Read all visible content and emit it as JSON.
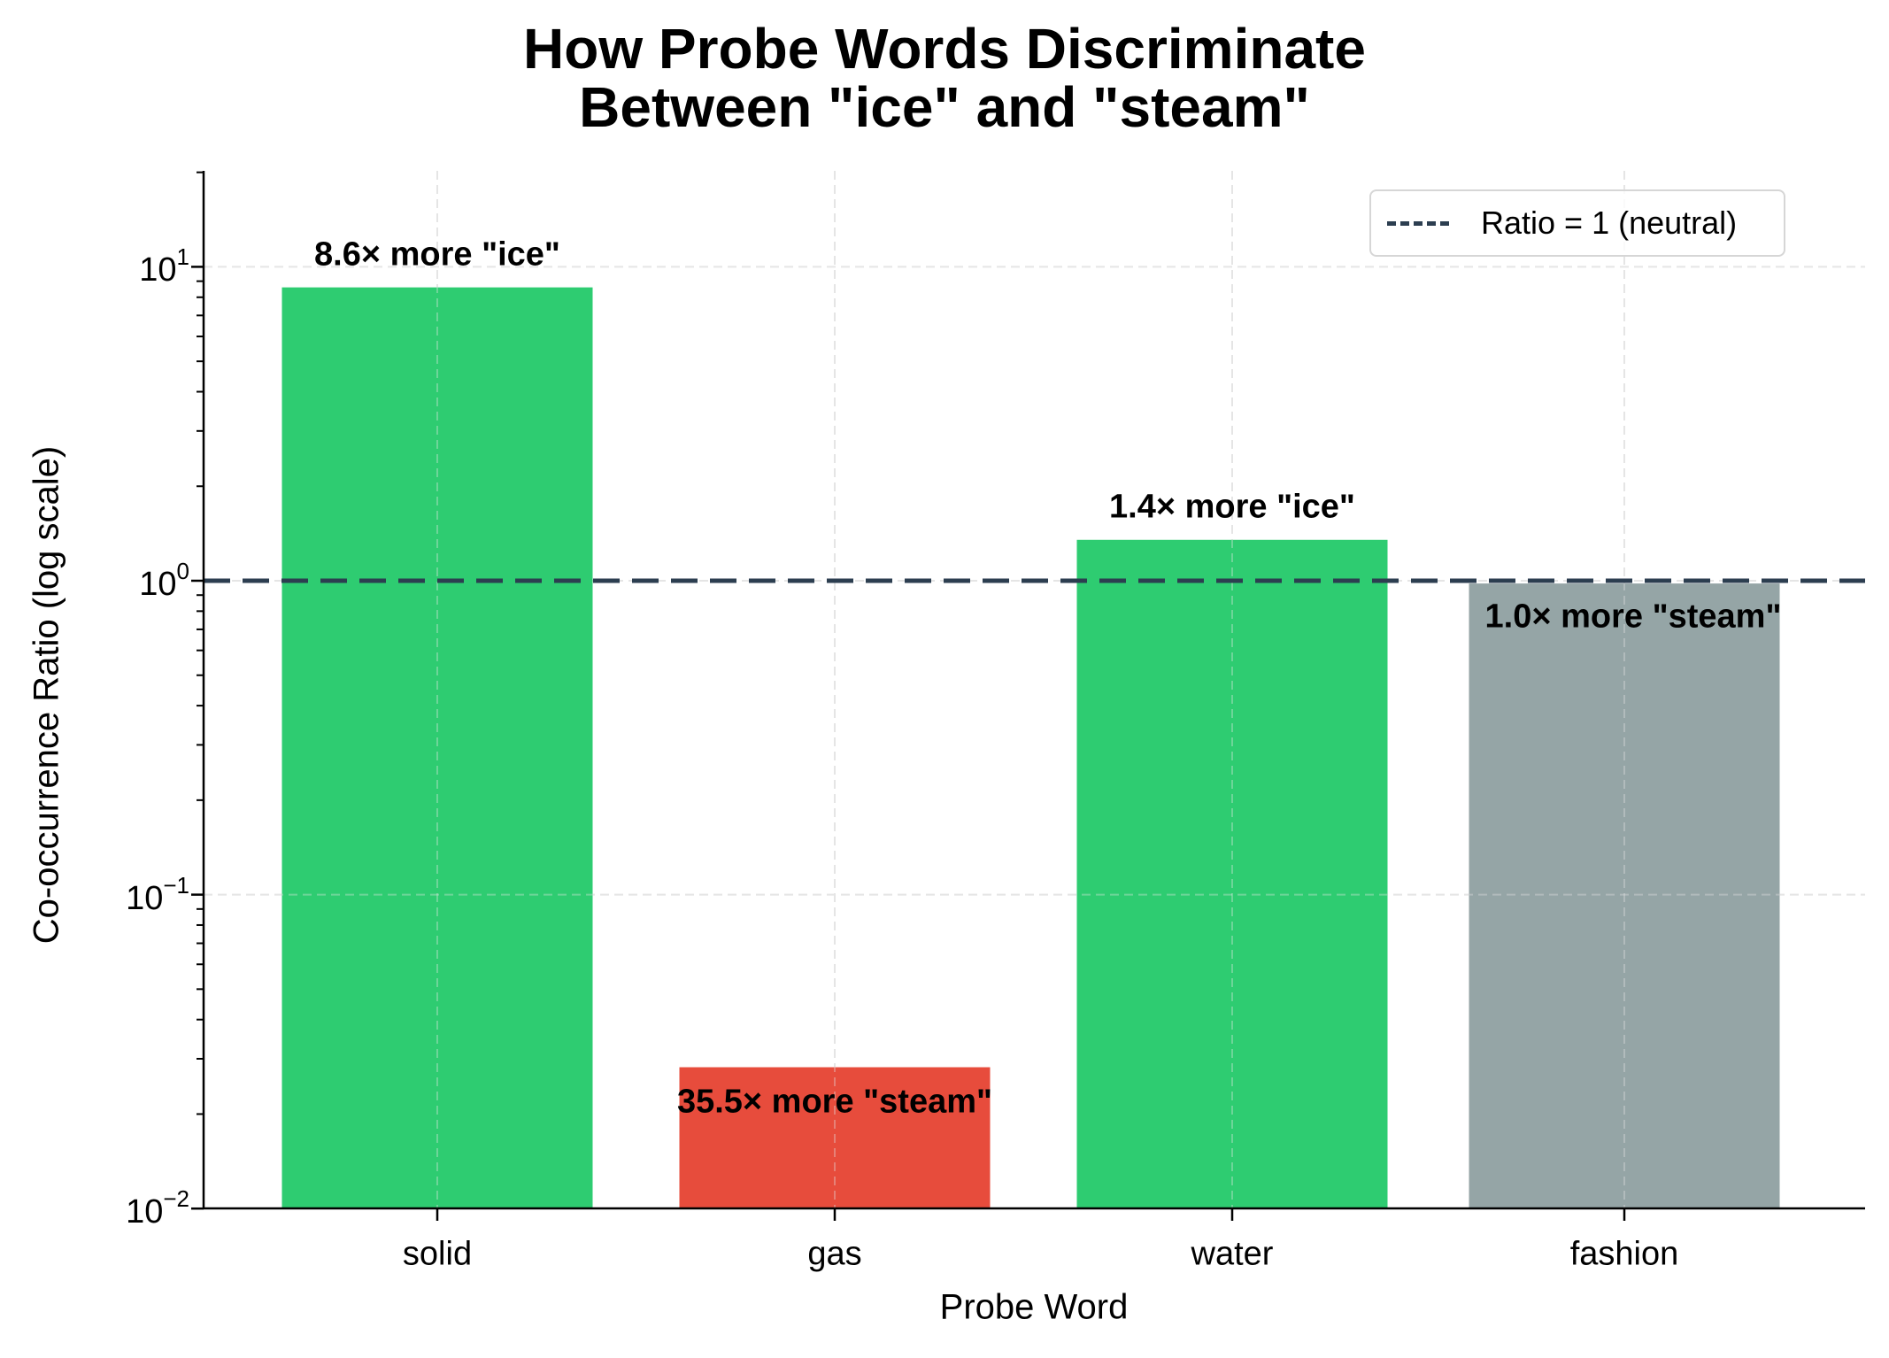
{
  "title": {
    "line1": "How Probe Words Discriminate",
    "line2": "Between \"ice\" and \"steam\""
  },
  "axes": {
    "xlabel": "Probe Word",
    "ylabel": "Co-occurrence Ratio (log scale)",
    "yticks": [
      {
        "base": "10",
        "exp": "1"
      },
      {
        "base": "10",
        "exp": "0"
      },
      {
        "base": "10",
        "exp": "−1"
      },
      {
        "base": "10",
        "exp": "−2"
      }
    ],
    "xticks": [
      "solid",
      "gas",
      "water",
      "fashion"
    ]
  },
  "legend": {
    "label": "Ratio = 1 (neutral)"
  },
  "bar_labels": [
    "8.6× more \"ice\"",
    "35.5× more \"steam\"",
    "1.4× more \"ice\"",
    "1.0× more \"steam\""
  ],
  "colors": {
    "ice": "#2ecc71",
    "steam": "#e74c3c",
    "neutral": "#95a5a6",
    "reference_line": "#2c3e50",
    "grid": "#e5e5e5"
  },
  "chart_data": {
    "type": "bar",
    "title": "How Probe Words Discriminate Between \"ice\" and \"steam\"",
    "xlabel": "Probe Word",
    "ylabel": "Co-occurrence Ratio (log scale)",
    "yscale": "log",
    "categories": [
      "solid",
      "gas",
      "water",
      "fashion"
    ],
    "values": [
      8.6,
      0.0282,
      1.35,
      0.98
    ],
    "bar_colors": [
      "#2ecc71",
      "#e74c3c",
      "#2ecc71",
      "#95a5a6"
    ],
    "annotations": [
      "8.6× more \"ice\"",
      "35.5× more \"steam\"",
      "1.4× more \"ice\"",
      "1.0× more \"steam\""
    ],
    "reference_line": {
      "y": 1,
      "style": "dashed",
      "label": "Ratio = 1 (neutral)"
    },
    "ylim": [
      0.01,
      20
    ],
    "yticks": [
      0.01,
      0.1,
      1,
      10
    ],
    "grid": true,
    "legend_position": "upper right"
  }
}
